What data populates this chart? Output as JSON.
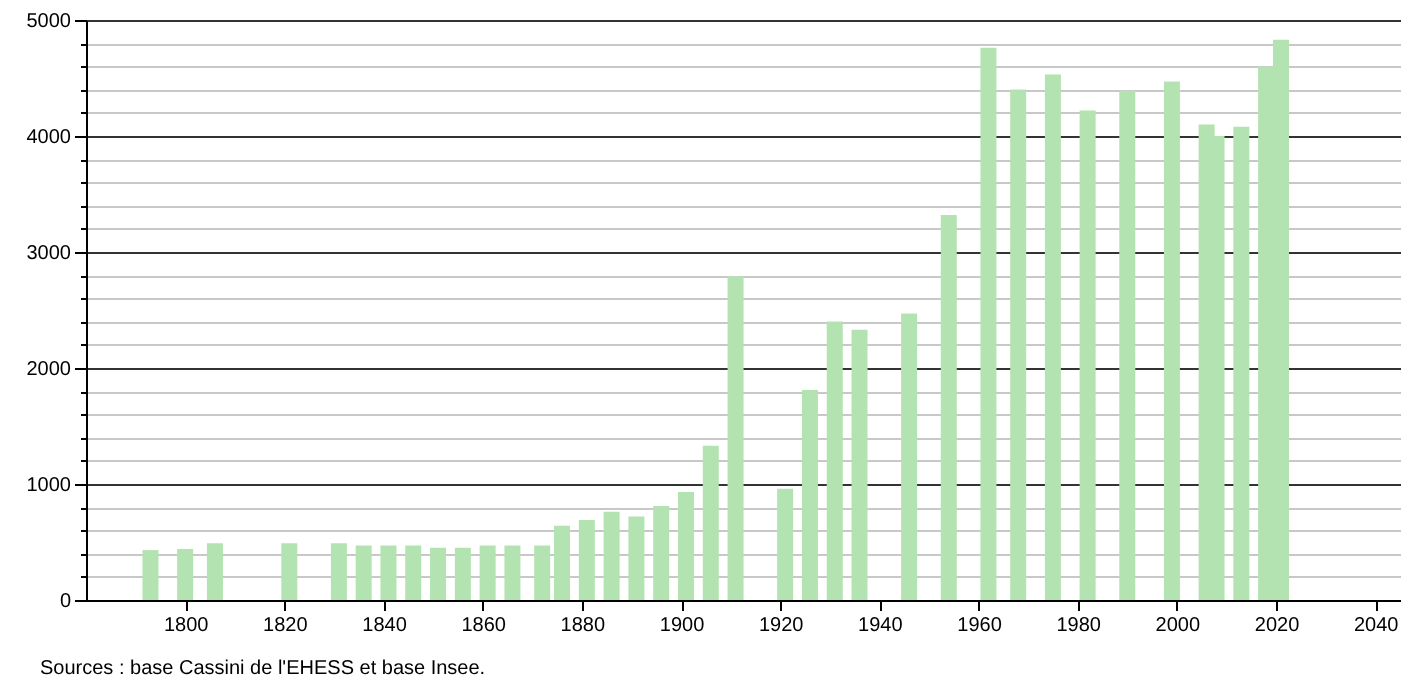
{
  "chart_data": {
    "type": "bar",
    "x": [
      1793,
      1800,
      1806,
      1821,
      1831,
      1836,
      1841,
      1846,
      1851,
      1856,
      1861,
      1866,
      1872,
      1876,
      1881,
      1886,
      1891,
      1896,
      1901,
      1906,
      1911,
      1921,
      1926,
      1931,
      1936,
      1946,
      1954,
      1962,
      1968,
      1975,
      1982,
      1990,
      1999,
      2006,
      2008,
      2013,
      2018,
      2021
    ],
    "values": [
      430,
      440,
      490,
      490,
      490,
      470,
      470,
      470,
      450,
      450,
      470,
      470,
      470,
      640,
      690,
      760,
      720,
      810,
      930,
      1330,
      2790,
      960,
      1810,
      2400,
      2330,
      2470,
      3320,
      4760,
      4400,
      4530,
      4220,
      4390,
      4470,
      4100,
      4000,
      4080,
      4600,
      4830
    ],
    "color": "#b3e3b0",
    "xlim": [
      1780,
      2045
    ],
    "xticks": [
      1800,
      1820,
      1840,
      1860,
      1880,
      1900,
      1920,
      1940,
      1960,
      1980,
      2000,
      2020,
      2040
    ],
    "ylim": [
      0,
      5000
    ],
    "yticks": [
      0,
      {
        "value": 200,
        "label": null
      },
      {
        "value": 400,
        "label": null
      },
      {
        "value": 600,
        "label": null
      },
      {
        "value": 800,
        "label": null
      },
      1000,
      {
        "value": 1200,
        "label": null
      },
      {
        "value": 1400,
        "label": null
      },
      {
        "value": 1600,
        "label": null
      },
      {
        "value": 1800,
        "label": null
      },
      2000,
      {
        "value": 2200,
        "label": null
      },
      {
        "value": 2400,
        "label": null
      },
      {
        "value": 2600,
        "label": null
      },
      {
        "value": 2800,
        "label": null
      },
      3000,
      {
        "value": 3200,
        "label": null
      },
      {
        "value": 3400,
        "label": null
      },
      {
        "value": 3600,
        "label": null
      },
      {
        "value": 3800,
        "label": null
      },
      4000,
      {
        "value": 4200,
        "label": null
      },
      {
        "value": 4400,
        "label": null
      },
      {
        "value": 4600,
        "label": null
      },
      {
        "value": 4800,
        "label": null
      },
      5000
    ],
    "grid": "y",
    "annotations": [
      "Sources : base Cassini de l'EHESS et base Insee."
    ]
  }
}
